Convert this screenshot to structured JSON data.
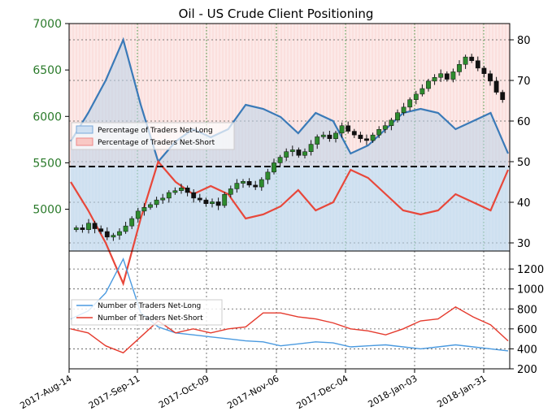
{
  "title": "Oil - US Crude Client Positioning",
  "colors": {
    "net_long": "#3a7ab8",
    "net_short": "#e8473a",
    "long_fill": "#dbe8f5",
    "short_fill": "#fbe0de",
    "candle_up": "#2e8b2e",
    "candle_down": "#111111",
    "price_axis_text": "#2a7a2a",
    "traders_long": "#4a9ae0",
    "traders_short": "#e53b2e"
  },
  "x_axis": {
    "tick_labels": [
      "2017-Aug-14",
      "2017-Sep-11",
      "2017-Oct-09",
      "2017-Nov-06",
      "2017-Dec-04",
      "2018-Jan-03",
      "2018-Jan-31"
    ]
  },
  "top_panel": {
    "price_axis": {
      "ticks": [
        5000,
        5500,
        6000,
        6500,
        7000
      ]
    },
    "percent_axis": {
      "ticks": [
        30,
        40,
        50,
        60,
        70,
        80
      ]
    },
    "reference_line_percent": 50,
    "legend": {
      "items": [
        "Percentage of Traders Net-Long",
        "Percentage of Traders Net-Short"
      ]
    }
  },
  "bottom_panel": {
    "count_axis": {
      "ticks": [
        200,
        400,
        600,
        800,
        1000,
        1200
      ]
    },
    "legend": {
      "items": [
        "Number of Traders Net-Long",
        "Number of Traders Net-Short"
      ]
    }
  },
  "chart_data": [
    {
      "type": "line",
      "panel": "positioning-percent",
      "x": [
        "2017-Aug-14",
        "2017-Aug-21",
        "2017-Aug-28",
        "2017-Sep-04",
        "2017-Sep-11",
        "2017-Sep-18",
        "2017-Sep-25",
        "2017-Oct-02",
        "2017-Oct-09",
        "2017-Oct-16",
        "2017-Oct-23",
        "2017-Oct-30",
        "2017-Nov-06",
        "2017-Nov-13",
        "2017-Nov-20",
        "2017-Nov-27",
        "2017-Dec-04",
        "2017-Dec-11",
        "2017-Dec-18",
        "2017-Dec-25",
        "2018-Jan-03",
        "2018-Jan-08",
        "2018-Jan-15",
        "2018-Jan-22",
        "2018-Jan-31",
        "2018-Feb-05"
      ],
      "series": [
        {
          "name": "Percentage of Traders Net-Long",
          "values": [
            55,
            62,
            70,
            80,
            64,
            50,
            55,
            58,
            56,
            58,
            64,
            63,
            61,
            57,
            62,
            60,
            52,
            54,
            58,
            62,
            63,
            62,
            58,
            60,
            62,
            52
          ]
        },
        {
          "name": "Percentage of Traders Net-Short",
          "values": [
            45,
            38,
            30,
            20,
            36,
            50,
            45,
            42,
            44,
            42,
            36,
            37,
            39,
            43,
            38,
            40,
            48,
            46,
            42,
            38,
            37,
            38,
            42,
            40,
            38,
            48
          ]
        }
      ],
      "ylim": [
        28,
        84
      ]
    },
    {
      "type": "candlestick",
      "panel": "price",
      "series": [
        {
          "name": "US Crude",
          "values": [
            4800,
            4780,
            4850,
            4790,
            4760,
            4700,
            4720,
            4760,
            4820,
            4900,
            4980,
            5020,
            5050,
            5100,
            5120,
            5180,
            5200,
            5230,
            5180,
            5120,
            5100,
            5060,
            5080,
            5040,
            5160,
            5220,
            5280,
            5300,
            5260,
            5240,
            5320,
            5400,
            5500,
            5560,
            5620,
            5640,
            5580,
            5620,
            5700,
            5780,
            5800,
            5760,
            5820,
            5900,
            5840,
            5800,
            5760,
            5740,
            5800,
            5860,
            5900,
            5960,
            6040,
            6100,
            6180,
            6240,
            6300,
            6380,
            6420,
            6460,
            6400,
            6480,
            6560,
            6640,
            6600,
            6520,
            6460,
            6380,
            6260,
            6180
          ]
        }
      ],
      "ylim": [
        4550,
        7000
      ]
    },
    {
      "type": "line",
      "panel": "trader-counts",
      "x": [
        "2017-Aug-14",
        "2017-Aug-21",
        "2017-Aug-28",
        "2017-Sep-04",
        "2017-Sep-11",
        "2017-Sep-18",
        "2017-Sep-25",
        "2017-Oct-02",
        "2017-Oct-09",
        "2017-Oct-16",
        "2017-Oct-23",
        "2017-Oct-30",
        "2017-Nov-06",
        "2017-Nov-13",
        "2017-Nov-20",
        "2017-Nov-27",
        "2017-Dec-04",
        "2017-Dec-11",
        "2017-Dec-18",
        "2017-Dec-25",
        "2018-Jan-03",
        "2018-Jan-08",
        "2018-Jan-15",
        "2018-Jan-22",
        "2018-Jan-31",
        "2018-Feb-05"
      ],
      "series": [
        {
          "name": "Number of Traders Net-Long",
          "values": [
            700,
            780,
            960,
            1300,
            760,
            620,
            560,
            540,
            520,
            500,
            480,
            470,
            430,
            450,
            470,
            460,
            420,
            430,
            440,
            420,
            400,
            420,
            440,
            420,
            400,
            380
          ]
        },
        {
          "name": "Number of Traders Net-Short",
          "values": [
            600,
            560,
            430,
            360,
            520,
            680,
            560,
            600,
            560,
            600,
            620,
            760,
            760,
            720,
            700,
            660,
            600,
            580,
            540,
            600,
            680,
            700,
            820,
            720,
            640,
            480
          ]
        }
      ],
      "ylim": [
        200,
        1380
      ]
    }
  ]
}
